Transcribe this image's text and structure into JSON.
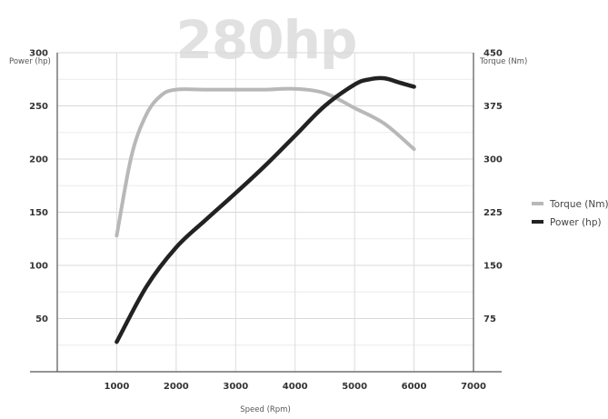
{
  "chart_data": {
    "type": "line",
    "title": "280hp",
    "xlabel": "Speed (Rpm)",
    "ylabel_left": "Power (hp)",
    "ylabel_right": "Torque (Nm)",
    "xlim": [
      0,
      7000
    ],
    "x_ticks": [
      1000,
      2000,
      3000,
      4000,
      5000,
      6000,
      7000
    ],
    "ylim_left": [
      0,
      300
    ],
    "y_ticks_left": [
      50,
      100,
      150,
      200,
      250,
      300
    ],
    "ylim_right": [
      0,
      450
    ],
    "y_ticks_right": [
      75,
      150,
      225,
      300,
      375,
      450
    ],
    "grid": true,
    "legend_position": "right",
    "series": [
      {
        "name": "Torque (Nm)",
        "axis": "right",
        "color": "#b8b8b8",
        "points": [
          [
            1000,
            192
          ],
          [
            1250,
            305
          ],
          [
            1500,
            363
          ],
          [
            1750,
            390
          ],
          [
            2000,
            398
          ],
          [
            2500,
            398
          ],
          [
            3000,
            398
          ],
          [
            3500,
            398
          ],
          [
            4000,
            399
          ],
          [
            4500,
            393
          ],
          [
            5000,
            372
          ],
          [
            5500,
            350
          ],
          [
            6000,
            314
          ]
        ]
      },
      {
        "name": "Power (hp)",
        "axis": "left",
        "color": "#222222",
        "points": [
          [
            1000,
            28
          ],
          [
            1500,
            80
          ],
          [
            2000,
            117
          ],
          [
            2500,
            143
          ],
          [
            3000,
            168
          ],
          [
            3500,
            194
          ],
          [
            4000,
            222
          ],
          [
            4500,
            250
          ],
          [
            5000,
            270
          ],
          [
            5250,
            275
          ],
          [
            5500,
            276
          ],
          [
            5750,
            272
          ],
          [
            6000,
            268
          ]
        ]
      }
    ]
  }
}
